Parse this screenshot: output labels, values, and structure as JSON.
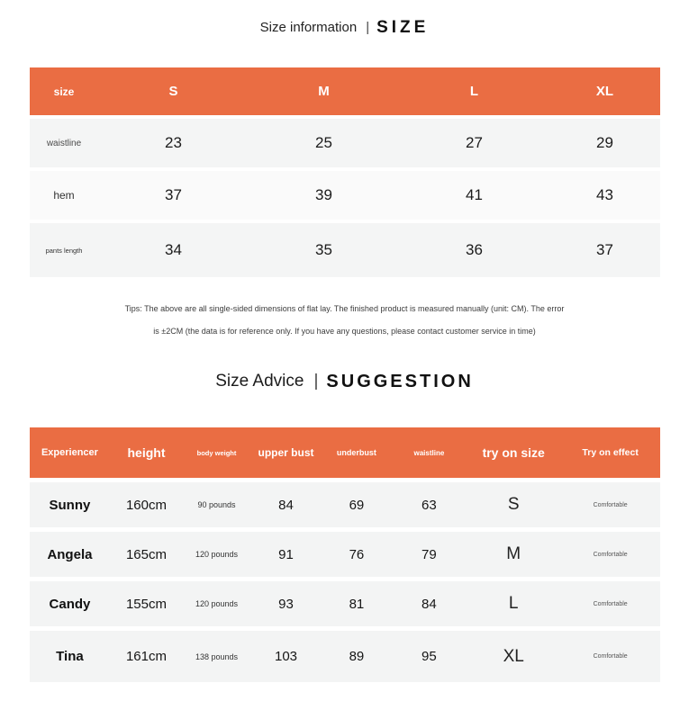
{
  "page": {
    "accent_color": "#EA6D43",
    "background_color": "#FFFFFF"
  },
  "size_section": {
    "title": {
      "label": "Size information",
      "divider": "|",
      "tag": "SIZE"
    },
    "table": {
      "columns": [
        "size",
        "S",
        "M",
        "L",
        "XL"
      ],
      "rows": [
        {
          "label": "waistline",
          "values": [
            "23",
            "25",
            "27",
            "29"
          ]
        },
        {
          "label": "hem",
          "values": [
            "37",
            "39",
            "41",
            "43"
          ]
        },
        {
          "label": "pants length",
          "values": [
            "34",
            "35",
            "36",
            "37"
          ]
        }
      ]
    },
    "tips": {
      "line1": "Tips: The above are all single-sided dimensions of flat lay. The finished product is measured manually (unit: CM). The error",
      "line2": "is ±2CM (the data is for reference only. If you have any questions, please contact customer service in time)"
    }
  },
  "advice_section": {
    "title": {
      "label": "Size Advice",
      "divider": "|",
      "tag": "SUGGESTION"
    },
    "table": {
      "columns": [
        "Experiencer",
        "height",
        "body weight",
        "upper bust",
        "underbust",
        "waistline",
        "try on size",
        "Try on effect"
      ],
      "rows": [
        {
          "name": "Sunny",
          "height": "160cm",
          "body_weight": "90 pounds",
          "upper_bust": "84",
          "underbust": "69",
          "waistline": "63",
          "try_on_size": "S",
          "effect": "Comfortable"
        },
        {
          "name": "Angela",
          "height": "165cm",
          "body_weight": "120 pounds",
          "upper_bust": "91",
          "underbust": "76",
          "waistline": "79",
          "try_on_size": "M",
          "effect": "Comfortable"
        },
        {
          "name": "Candy",
          "height": "155cm",
          "body_weight": "120 pounds",
          "upper_bust": "93",
          "underbust": "81",
          "waistline": "84",
          "try_on_size": "L",
          "effect": "Comfortable"
        },
        {
          "name": "Tina",
          "height": "161cm",
          "body_weight": "138 pounds",
          "upper_bust": "103",
          "underbust": "89",
          "waistline": "95",
          "try_on_size": "XL",
          "effect": "Comfortable"
        }
      ]
    }
  }
}
